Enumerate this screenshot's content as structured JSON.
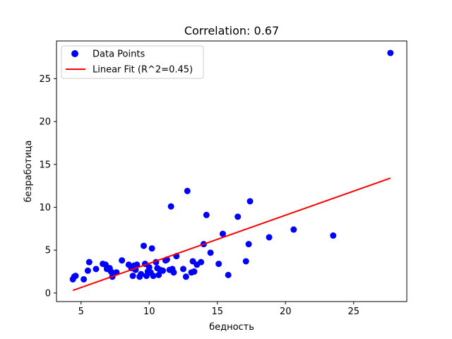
{
  "chart_data": {
    "type": "scatter",
    "title": "Correlation: 0.67",
    "xlabel": "бедность",
    "ylabel": "безработица",
    "xlim": [
      3.2,
      28.9
    ],
    "ylim": [
      -1.0,
      29.4
    ],
    "xticks": [
      5,
      10,
      15,
      20,
      25
    ],
    "yticks": [
      0,
      5,
      10,
      15,
      20,
      25
    ],
    "grid": false,
    "legend_position": "top-left",
    "colors": {
      "points": "#0000ff",
      "fit": "#ff0000"
    },
    "series": [
      {
        "name": "Data Points",
        "kind": "scatter",
        "x": [
          4.4,
          4.5,
          4.6,
          5.2,
          5.5,
          5.6,
          6.1,
          6.6,
          6.8,
          6.9,
          7.1,
          7.2,
          7.3,
          7.6,
          8.0,
          8.5,
          8.7,
          8.8,
          8.9,
          9.0,
          9.1,
          9.3,
          9.4,
          9.6,
          9.7,
          9.8,
          9.9,
          10.0,
          10.1,
          10.2,
          10.3,
          10.5,
          10.6,
          10.7,
          10.8,
          11.0,
          11.2,
          11.3,
          11.5,
          11.6,
          11.7,
          11.8,
          12.0,
          12.5,
          12.7,
          12.8,
          13.1,
          13.2,
          13.3,
          13.5,
          13.8,
          14.0,
          14.2,
          14.5,
          15.1,
          15.4,
          15.8,
          16.5,
          17.1,
          17.3,
          17.4,
          18.8,
          20.6,
          23.5,
          27.7
        ],
        "y": [
          1.6,
          1.9,
          2.0,
          1.6,
          2.6,
          3.6,
          2.8,
          3.4,
          3.3,
          2.8,
          2.9,
          2.5,
          1.9,
          2.4,
          3.8,
          3.3,
          2.9,
          2.0,
          3.2,
          2.7,
          3.3,
          1.9,
          2.2,
          5.5,
          3.4,
          2.0,
          2.5,
          3.0,
          2.4,
          5.2,
          2.0,
          3.6,
          2.9,
          2.1,
          2.7,
          2.6,
          3.8,
          3.9,
          2.7,
          10.1,
          2.8,
          2.4,
          4.3,
          2.8,
          1.9,
          11.9,
          2.4,
          3.7,
          2.5,
          3.3,
          3.6,
          5.7,
          9.1,
          4.7,
          3.4,
          6.9,
          2.1,
          8.9,
          3.7,
          5.7,
          10.7,
          6.5,
          7.4,
          6.7,
          28.0
        ]
      },
      {
        "name": "Linear Fit (R^2=0.45)",
        "kind": "line",
        "x": [
          4.4,
          27.7
        ],
        "y": [
          0.3,
          13.4
        ]
      }
    ]
  }
}
